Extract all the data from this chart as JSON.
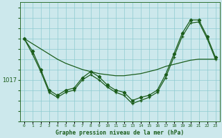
{
  "xlabel": "Graphe pression niveau de la mer (hPa)",
  "ytick_value": 1017,
  "background_color": "#cce8ec",
  "line_color": "#1a5c1a",
  "grid_color": "#8ecad0",
  "axis_color": "#2d6e2d",
  "text_color": "#1a5c1a",
  "x_hours": [
    0,
    1,
    2,
    3,
    4,
    5,
    6,
    7,
    8,
    9,
    10,
    11,
    12,
    13,
    14,
    15,
    16,
    17,
    18,
    19,
    20,
    21,
    22,
    23
  ],
  "pressure_main": [
    1021.0,
    1019.8,
    1018.0,
    1016.0,
    1015.5,
    1016.0,
    1016.2,
    1017.2,
    1017.8,
    1017.3,
    1016.5,
    1016.0,
    1015.8,
    1015.0,
    1015.3,
    1015.5,
    1016.0,
    1017.5,
    1019.5,
    1021.5,
    1022.8,
    1022.8,
    1021.2,
    1019.2
  ],
  "pressure_detail": [
    1021.0,
    1019.5,
    1017.8,
    1015.8,
    1015.3,
    1015.8,
    1016.0,
    1017.0,
    1017.5,
    1017.0,
    1016.3,
    1015.8,
    1015.5,
    1014.7,
    1015.0,
    1015.3,
    1015.8,
    1017.2,
    1019.2,
    1021.2,
    1022.5,
    1022.6,
    1021.0,
    1019.0
  ],
  "pressure_smooth": [
    1021.0,
    1020.5,
    1020.0,
    1019.5,
    1019.0,
    1018.6,
    1018.3,
    1018.0,
    1017.8,
    1017.6,
    1017.5,
    1017.4,
    1017.4,
    1017.5,
    1017.6,
    1017.8,
    1018.0,
    1018.3,
    1018.5,
    1018.7,
    1018.9,
    1019.0,
    1019.0,
    1019.0
  ],
  "ylim_min": 1013.0,
  "ylim_max": 1024.5,
  "figsize": [
    3.2,
    2.0
  ],
  "dpi": 100
}
